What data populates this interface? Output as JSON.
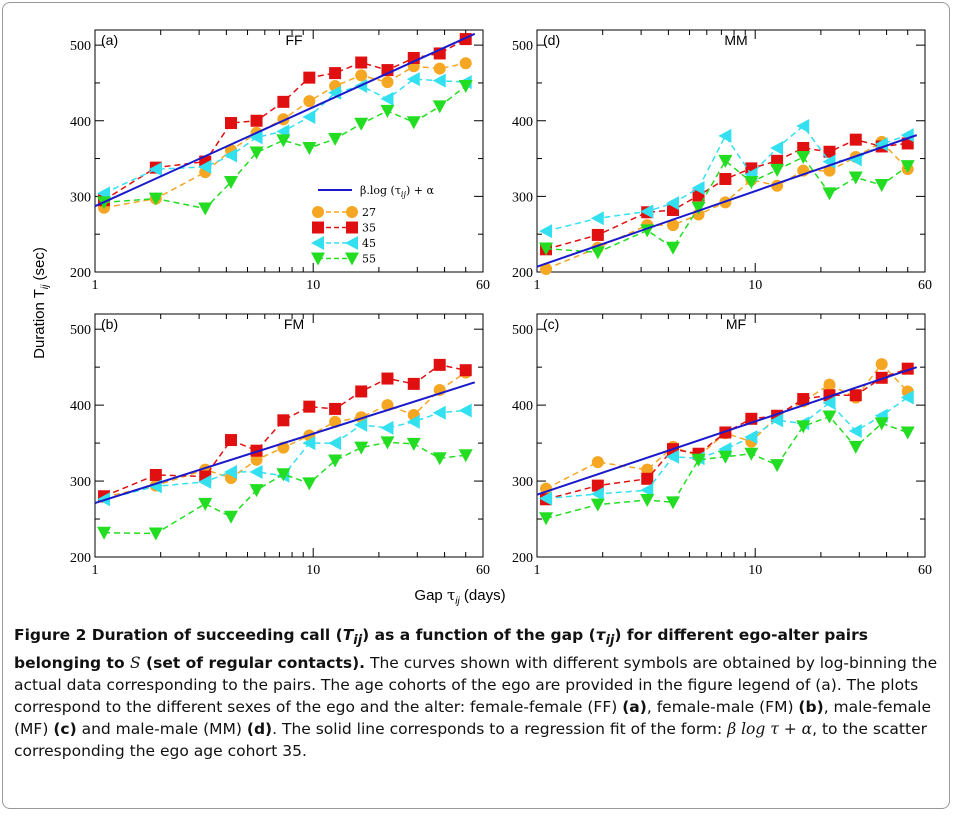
{
  "figure": {
    "ylabel": "Duration T",
    "ylabel_sub": "ij",
    "ylabel_unit": "(sec)",
    "xlabel": "Gap",
    "xlabel_sym": "τ",
    "xlabel_sub": "ij",
    "xlabel_unit": "(days)",
    "legend_fit_label": "β.log (τ",
    "legend_fit_sub": "ij",
    "legend_fit_tail": ") + α"
  },
  "caption": {
    "title_1": "Figure 2  Duration of succeeding call (",
    "title_T": "T",
    "title_Tsub": "ij",
    "title_2": ") as a function of the gap (",
    "title_tau": "τ",
    "title_tausub": "ij",
    "title_3": ") for different ego-alter pairs belonging to ",
    "title_S": "S",
    "title_4": " (set of regular contacts).",
    "body_1": " The curves shown with different symbols are obtained by log-binning the actual data corresponding to the pairs. The age cohorts of the ego are provided in the figure legend of (a). The plots correspond to the different sexes of the ego and the alter: female-female (FF) ",
    "ref_a": "(a)",
    "body_2": ", female-male (FM) ",
    "ref_b": "(b)",
    "body_3": ", male-female (MF) ",
    "ref_c": "(c)",
    "body_4": " and male-male (MM) ",
    "ref_d": "(d)",
    "body_5": ". The solid line corresponds to a regression fit of the form: ",
    "formula": "β log τ + α",
    "body_6": ", to the scatter corresponding the ego age cohort 35."
  },
  "series_styles": [
    {
      "name": "27",
      "color": "#f5a623",
      "marker": "circle"
    },
    {
      "name": "35",
      "color": "#e01010",
      "marker": "square"
    },
    {
      "name": "45",
      "color": "#33e0f0",
      "marker": "triangle-left"
    },
    {
      "name": "55",
      "color": "#22dd22",
      "marker": "triangle-down"
    }
  ],
  "fit_color": "#1a1acc",
  "chart_data": [
    {
      "type": "line",
      "panel": "(a)",
      "title": "FF",
      "x_scale": "log",
      "xlim": [
        1,
        60
      ],
      "ylim": [
        200,
        520
      ],
      "xticks": [
        "1",
        "10",
        "60"
      ],
      "yticks": [
        "200",
        "300",
        "400",
        "500"
      ],
      "legend": {
        "placement": "center-right",
        "entries": [
          "β.log (τij) + α",
          "27",
          "35",
          "45",
          "55"
        ]
      },
      "fit": {
        "x": [
          1,
          55
        ],
        "y": [
          287,
          515
        ]
      },
      "x": [
        1.1,
        1.9,
        3.2,
        4.2,
        5.5,
        7.3,
        9.6,
        12.6,
        16.6,
        21.9,
        28.9,
        38,
        50
      ],
      "series": [
        {
          "name": "27",
          "values": [
            285,
            297,
            332,
            361,
            384,
            402,
            426,
            446,
            460,
            451,
            472,
            469,
            476
          ]
        },
        {
          "name": "35",
          "values": [
            295,
            338,
            346,
            397,
            400,
            425,
            457,
            463,
            477,
            467,
            483,
            489,
            508
          ]
        },
        {
          "name": "45",
          "values": [
            304,
            336,
            339,
            354,
            378,
            386,
            405,
            437,
            446,
            429,
            455,
            453,
            451
          ]
        },
        {
          "name": "55",
          "values": [
            292,
            297,
            284,
            319,
            358,
            374,
            364,
            376,
            396,
            413,
            398,
            419,
            446
          ]
        }
      ]
    },
    {
      "type": "line",
      "panel": "(d)",
      "title": "MM",
      "x_scale": "log",
      "xlim": [
        1,
        60
      ],
      "ylim": [
        200,
        520
      ],
      "xticks": [
        "1",
        "10",
        "60"
      ],
      "yticks": [
        "200",
        "300",
        "400",
        "500"
      ],
      "fit": {
        "x": [
          1,
          55
        ],
        "y": [
          207,
          381
        ]
      },
      "x": [
        1.1,
        1.9,
        3.2,
        4.2,
        5.5,
        7.3,
        9.6,
        12.6,
        16.6,
        21.9,
        28.9,
        38,
        50
      ],
      "series": [
        {
          "name": "27",
          "values": [
            204,
            232,
            262,
            262,
            276,
            292,
            322,
            314,
            334,
            334,
            352,
            372,
            336
          ]
        },
        {
          "name": "35",
          "values": [
            230,
            249,
            279,
            282,
            301,
            323,
            337,
            347,
            364,
            359,
            375,
            366,
            370
          ]
        },
        {
          "name": "45",
          "values": [
            254,
            271,
            280,
            291,
            311,
            380,
            329,
            364,
            393,
            346,
            349,
            369,
            381
          ]
        },
        {
          "name": "55",
          "values": [
            231,
            226,
            255,
            232,
            285,
            347,
            319,
            335,
            352,
            304,
            325,
            315,
            340
          ]
        }
      ]
    },
    {
      "type": "line",
      "panel": "(b)",
      "title": "FM",
      "x_scale": "log",
      "xlim": [
        1,
        60
      ],
      "ylim": [
        200,
        520
      ],
      "xticks": [
        "1",
        "10",
        "60"
      ],
      "yticks": [
        "200",
        "300",
        "400",
        "500"
      ],
      "fit": {
        "x": [
          1,
          55
        ],
        "y": [
          271,
          430
        ]
      },
      "x": [
        1.1,
        1.9,
        3.2,
        4.2,
        5.5,
        7.3,
        9.6,
        12.6,
        16.6,
        21.9,
        28.9,
        38,
        50
      ],
      "series": [
        {
          "name": "27",
          "values": [
            279,
            294,
            315,
            304,
            328,
            344,
            360,
            378,
            384,
            400,
            387,
            420,
            443
          ]
        },
        {
          "name": "35",
          "values": [
            280,
            308,
            306,
            354,
            340,
            380,
            398,
            395,
            418,
            435,
            428,
            453,
            446
          ]
        },
        {
          "name": "45",
          "values": [
            276,
            293,
            299,
            312,
            312,
            307,
            350,
            350,
            374,
            370,
            378,
            390,
            393
          ]
        },
        {
          "name": "55",
          "values": [
            232,
            231,
            270,
            253,
            288,
            309,
            297,
            327,
            344,
            351,
            349,
            330,
            334
          ]
        }
      ]
    },
    {
      "type": "line",
      "panel": "(c)",
      "title": "MF",
      "x_scale": "log",
      "xlim": [
        1,
        60
      ],
      "ylim": [
        200,
        520
      ],
      "xticks": [
        "1",
        "10",
        "60"
      ],
      "yticks": [
        "200",
        "300",
        "400",
        "500"
      ],
      "fit": {
        "x": [
          1,
          55
        ],
        "y": [
          282,
          450
        ]
      },
      "x": [
        1.1,
        1.9,
        3.2,
        4.2,
        5.5,
        7.3,
        9.6,
        12.6,
        16.6,
        21.9,
        28.9,
        38,
        50
      ],
      "series": [
        {
          "name": "27",
          "values": [
            290,
            325,
            315,
            345,
            333,
            363,
            352,
            385,
            405,
            427,
            410,
            454,
            418
          ]
        },
        {
          "name": "35",
          "values": [
            276,
            294,
            303,
            342,
            336,
            364,
            382,
            386,
            408,
            413,
            413,
            436,
            448
          ]
        },
        {
          "name": "45",
          "values": [
            277,
            283,
            288,
            332,
            330,
            342,
            358,
            380,
            376,
            403,
            366,
            386,
            410
          ]
        },
        {
          "name": "55",
          "values": [
            251,
            269,
            275,
            272,
            328,
            332,
            336,
            321,
            372,
            385,
            345,
            376,
            364
          ]
        }
      ]
    }
  ]
}
